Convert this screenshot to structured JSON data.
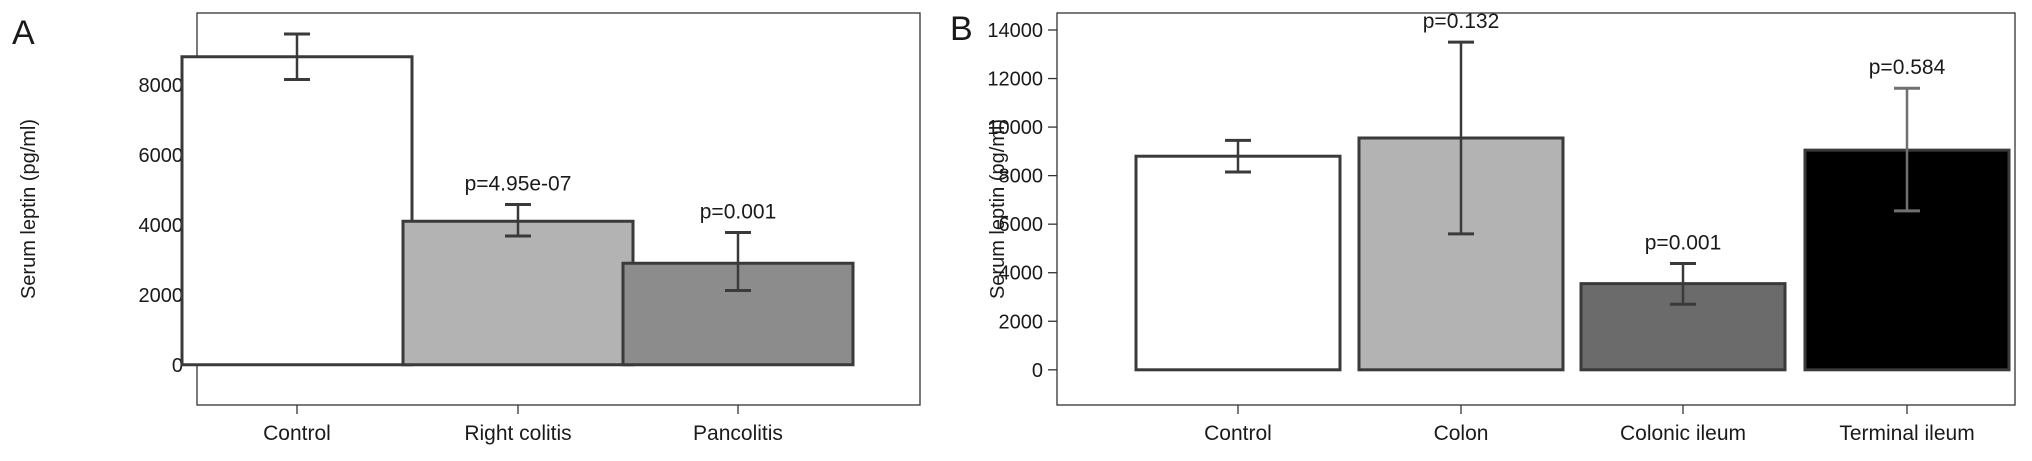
{
  "chart_data": [
    {
      "panel": "A",
      "type": "bar",
      "categories": [
        "Control",
        "Right colitis",
        "Pancolitis"
      ],
      "values": [
        8800,
        4100,
        2900
      ],
      "error_low": [
        8150,
        3680,
        2120
      ],
      "error_high": [
        9450,
        4580,
        3780
      ],
      "annotations": [
        "",
        "p=4.95e-07",
        "p=0.001"
      ],
      "bar_colors": [
        "#ffffff",
        "#b3b3b3",
        "#8c8c8c"
      ],
      "ylabel": "Serum leptin (pg/ml)",
      "yticks": [
        0,
        2000,
        4000,
        6000,
        8000
      ],
      "ylim": [
        -1150,
        10050
      ],
      "grid": false
    },
    {
      "panel": "B",
      "type": "bar",
      "categories": [
        "Control",
        "Colon",
        "Colonic ileum",
        "Terminal ileum"
      ],
      "values": [
        8800,
        9550,
        3550,
        9050
      ],
      "error_low": [
        8150,
        5600,
        2700,
        6550
      ],
      "error_high": [
        9450,
        13500,
        4380,
        11600
      ],
      "annotations": [
        "",
        "p=0.132",
        "p=0.001",
        "p=0.584"
      ],
      "bar_colors": [
        "#ffffff",
        "#b3b3b3",
        "#6b6b6b",
        "#000000"
      ],
      "ylabel": "Serum leptin (pg/ml)",
      "yticks": [
        0,
        2000,
        4000,
        6000,
        8000,
        10000,
        12000,
        14000
      ],
      "ylim": [
        -1450,
        14700
      ],
      "grid": false
    }
  ]
}
